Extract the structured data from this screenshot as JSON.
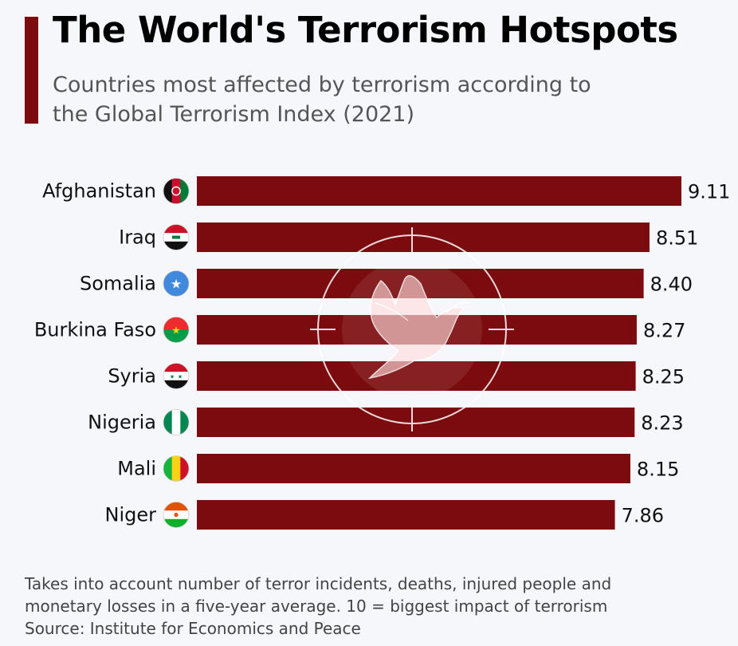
{
  "header": {
    "title": "The World's Terrorism Hotspots",
    "subtitle": "Countries most affected by terrorism according to the Global Terrorism Index (2021)"
  },
  "footer": {
    "note_line1": "Takes into account number of terror incidents, deaths, injured people and",
    "note_line2": "monetary losses in a five-year average. 10 = biggest impact of terrorism",
    "source": "Source: Institute for Economics and Peace"
  },
  "colors": {
    "bar": "#7b0b0e",
    "accent": "#7b0b0e",
    "background": "#f6f7fb"
  },
  "watermark_icon": "peace-dove-crosshair-icon",
  "chart_data": {
    "type": "bar",
    "orientation": "horizontal",
    "title": "The World's Terrorism Hotspots",
    "subtitle": "Countries most affected by terrorism according to the Global Terrorism Index (2021)",
    "categories": [
      "Afghanistan",
      "Iraq",
      "Somalia",
      "Burkina Faso",
      "Syria",
      "Nigeria",
      "Mali",
      "Niger"
    ],
    "values": [
      9.11,
      8.51,
      8.4,
      8.27,
      8.25,
      8.23,
      8.15,
      7.86
    ],
    "value_labels": [
      "9.11",
      "8.51",
      "8.40",
      "8.27",
      "8.25",
      "8.23",
      "8.15",
      "7.86"
    ],
    "flag_icons": [
      "afghanistan-flag-icon",
      "iraq-flag-icon",
      "somalia-flag-icon",
      "burkina-faso-flag-icon",
      "syria-flag-icon",
      "nigeria-flag-icon",
      "mali-flag-icon",
      "niger-flag-icon"
    ],
    "xlim": [
      0,
      9.11
    ],
    "xlabel": "",
    "ylabel": "",
    "grid": false,
    "legend": "none"
  }
}
